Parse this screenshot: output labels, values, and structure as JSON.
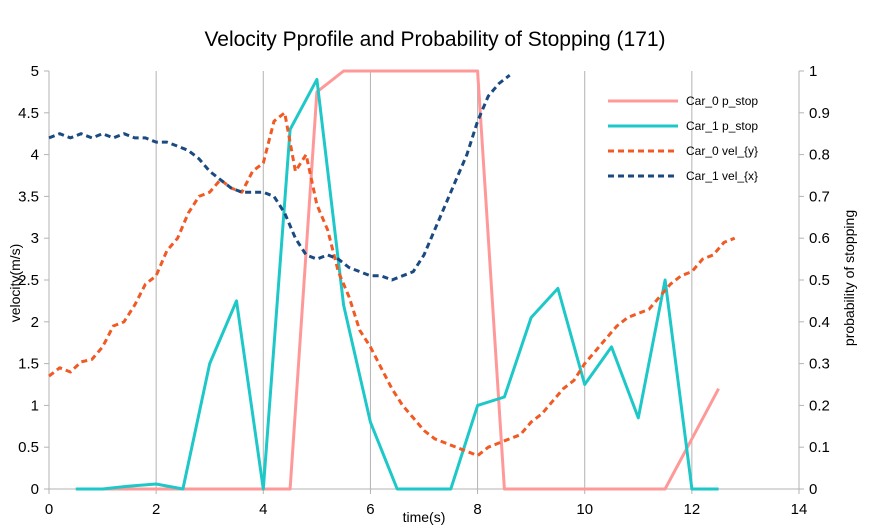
{
  "chart_data": {
    "type": "line",
    "title": "Velocity Pprofile and Probability of Stopping (171)",
    "xlabel": "time(s)",
    "ylabel_left": "velocity(m/s)",
    "ylabel_right": "probability of stopping",
    "xlim": [
      0,
      14
    ],
    "ylim_left": [
      0,
      5
    ],
    "ylim_right": [
      0,
      1
    ],
    "x_ticks": [
      "0",
      "2",
      "4",
      "6",
      "8",
      "10",
      "12",
      "14"
    ],
    "y_left_ticks": [
      "0",
      "0.5",
      "1",
      "1.5",
      "2",
      "2.5",
      "3",
      "3.5",
      "4",
      "4.5",
      "5"
    ],
    "y_right_ticks": [
      "0",
      "0.1",
      "0.2",
      "0.3",
      "0.4",
      "0.5",
      "0.6",
      "0.7",
      "0.8",
      "0.9",
      "1"
    ],
    "grid": "vertical",
    "legend_position": "top-right",
    "series": [
      {
        "name": "Car_0  p_stop",
        "axis": "right",
        "style": "solid",
        "color": "#ff9999",
        "x": [
          0.5,
          1,
          1.5,
          2,
          2.5,
          3,
          3.5,
          4,
          4.5,
          5,
          5.5,
          6,
          6.5,
          7,
          7.5,
          8,
          8.5,
          9,
          9.5,
          10,
          10.5,
          11,
          11.5,
          12,
          12.5
        ],
        "y": [
          0,
          0,
          0,
          0,
          0,
          0,
          0,
          0,
          0,
          0.95,
          1,
          1,
          1,
          1,
          1,
          1,
          0,
          0,
          0,
          0,
          0,
          0,
          0,
          0.12,
          0.24
        ]
      },
      {
        "name": "Car_1 p_stop",
        "axis": "right",
        "style": "solid",
        "color": "#1ec8c8",
        "x": [
          0.5,
          1,
          1.5,
          2,
          2.5,
          3,
          3.5,
          4,
          4.5,
          5,
          5.5,
          6,
          6.5,
          7,
          7.5,
          8,
          8.5,
          9,
          9.5,
          10,
          10.5,
          11,
          11.5,
          12,
          12.5
        ],
        "y": [
          0,
          0,
          0.007,
          0.012,
          0,
          0.3,
          0.45,
          0,
          0.86,
          0.98,
          0.44,
          0.16,
          0,
          0,
          0,
          0.2,
          0.22,
          0.41,
          0.48,
          0.25,
          0.34,
          0.17,
          0.5,
          0,
          0
        ]
      },
      {
        "name": "Car_0 vel_{y}",
        "axis": "left",
        "style": "dashed",
        "color": "#f15a24",
        "x": [
          0,
          0.2,
          0.4,
          0.6,
          0.8,
          1.0,
          1.2,
          1.4,
          1.6,
          1.8,
          2.0,
          2.2,
          2.4,
          2.6,
          2.8,
          3.0,
          3.2,
          3.4,
          3.6,
          3.8,
          4.0,
          4.2,
          4.4,
          4.6,
          4.8,
          5.0,
          5.2,
          5.4,
          5.6,
          5.8,
          6.0,
          6.2,
          6.4,
          6.6,
          6.8,
          7.0,
          7.2,
          7.4,
          7.6,
          7.8,
          8.0,
          8.2,
          8.4,
          8.6,
          8.8,
          9.0,
          9.2,
          9.4,
          9.6,
          9.8,
          10.0,
          10.2,
          10.4,
          10.6,
          10.8,
          11.0,
          11.2,
          11.4,
          11.6,
          11.8,
          12.0,
          12.2,
          12.4,
          12.6,
          12.8
        ],
        "y": [
          1.35,
          1.45,
          1.4,
          1.52,
          1.55,
          1.7,
          1.95,
          2.0,
          2.2,
          2.45,
          2.55,
          2.85,
          3.0,
          3.3,
          3.5,
          3.55,
          3.7,
          3.6,
          3.55,
          3.8,
          3.9,
          4.4,
          4.5,
          3.8,
          4.0,
          3.4,
          3.1,
          2.6,
          2.3,
          1.9,
          1.7,
          1.45,
          1.2,
          1.0,
          0.85,
          0.7,
          0.6,
          0.55,
          0.5,
          0.45,
          0.4,
          0.5,
          0.55,
          0.6,
          0.65,
          0.8,
          0.9,
          1.05,
          1.2,
          1.3,
          1.5,
          1.65,
          1.8,
          1.95,
          2.05,
          2.1,
          2.15,
          2.3,
          2.45,
          2.55,
          2.6,
          2.75,
          2.8,
          2.95,
          3.0
        ]
      },
      {
        "name": "Car_1 vel_{x}",
        "axis": "left",
        "style": "dashed",
        "color": "#1a4a80",
        "x": [
          0,
          0.2,
          0.4,
          0.6,
          0.8,
          1.0,
          1.2,
          1.4,
          1.6,
          1.8,
          2.0,
          2.2,
          2.4,
          2.6,
          2.8,
          3.0,
          3.2,
          3.4,
          3.6,
          3.8,
          4.0,
          4.2,
          4.4,
          4.6,
          4.8,
          5.0,
          5.2,
          5.4,
          5.6,
          5.8,
          6.0,
          6.2,
          6.4,
          6.6,
          6.8,
          7.0,
          7.2,
          7.4,
          7.6,
          7.8,
          8.0,
          8.2,
          8.4,
          8.6
        ],
        "y": [
          4.2,
          4.25,
          4.2,
          4.25,
          4.2,
          4.25,
          4.2,
          4.25,
          4.2,
          4.2,
          4.15,
          4.15,
          4.1,
          4.05,
          3.95,
          3.8,
          3.7,
          3.6,
          3.55,
          3.55,
          3.55,
          3.5,
          3.3,
          3.0,
          2.8,
          2.75,
          2.8,
          2.75,
          2.65,
          2.6,
          2.55,
          2.55,
          2.5,
          2.55,
          2.6,
          2.8,
          3.1,
          3.4,
          3.7,
          4.0,
          4.4,
          4.7,
          4.85,
          4.95
        ]
      }
    ]
  }
}
